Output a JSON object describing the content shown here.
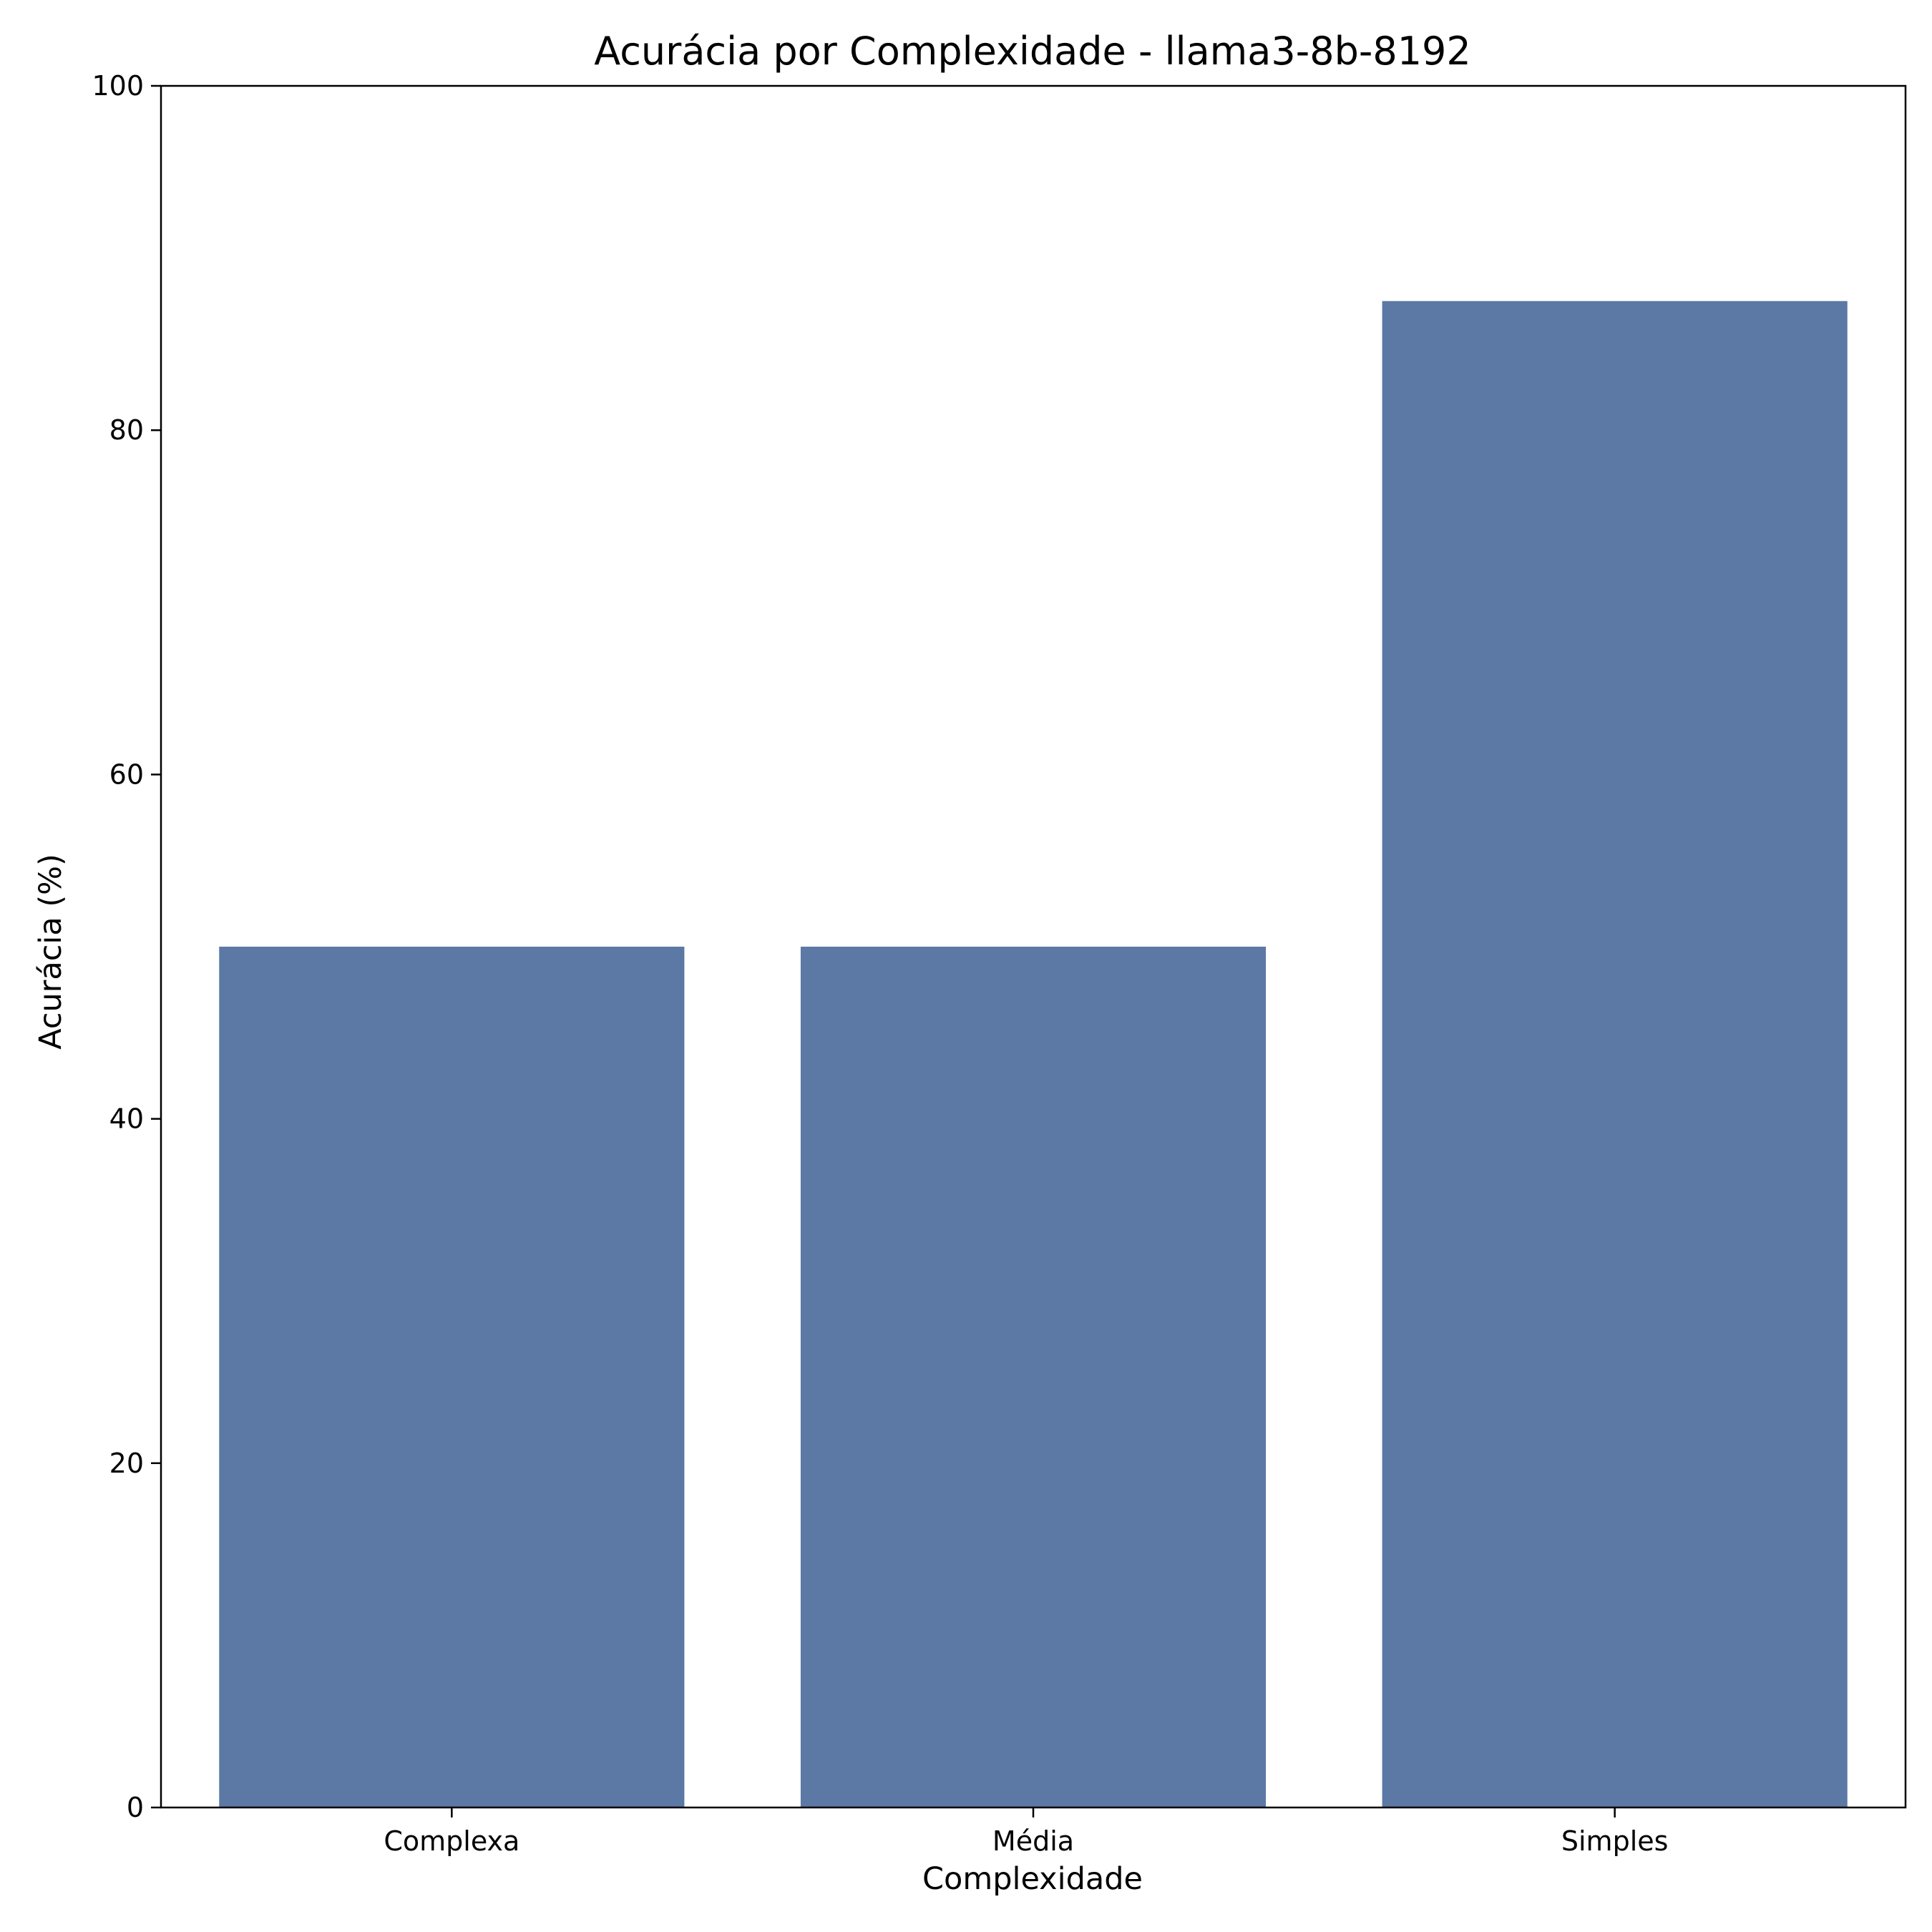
{
  "chart_data": {
    "type": "bar",
    "title": "Acurácia por Complexidade - llama3-8b-8192",
    "xlabel": "Complexidade",
    "ylabel": "Acurácia (%)",
    "categories": [
      "Complexa",
      "Média",
      "Simples"
    ],
    "values": [
      50.0,
      50.0,
      87.5
    ],
    "ylim": [
      0,
      100
    ],
    "yticks": [
      0,
      20,
      40,
      60,
      80,
      100
    ],
    "grid": false,
    "colors": {
      "bar": "#5b79a4",
      "axis": "#000000"
    }
  }
}
